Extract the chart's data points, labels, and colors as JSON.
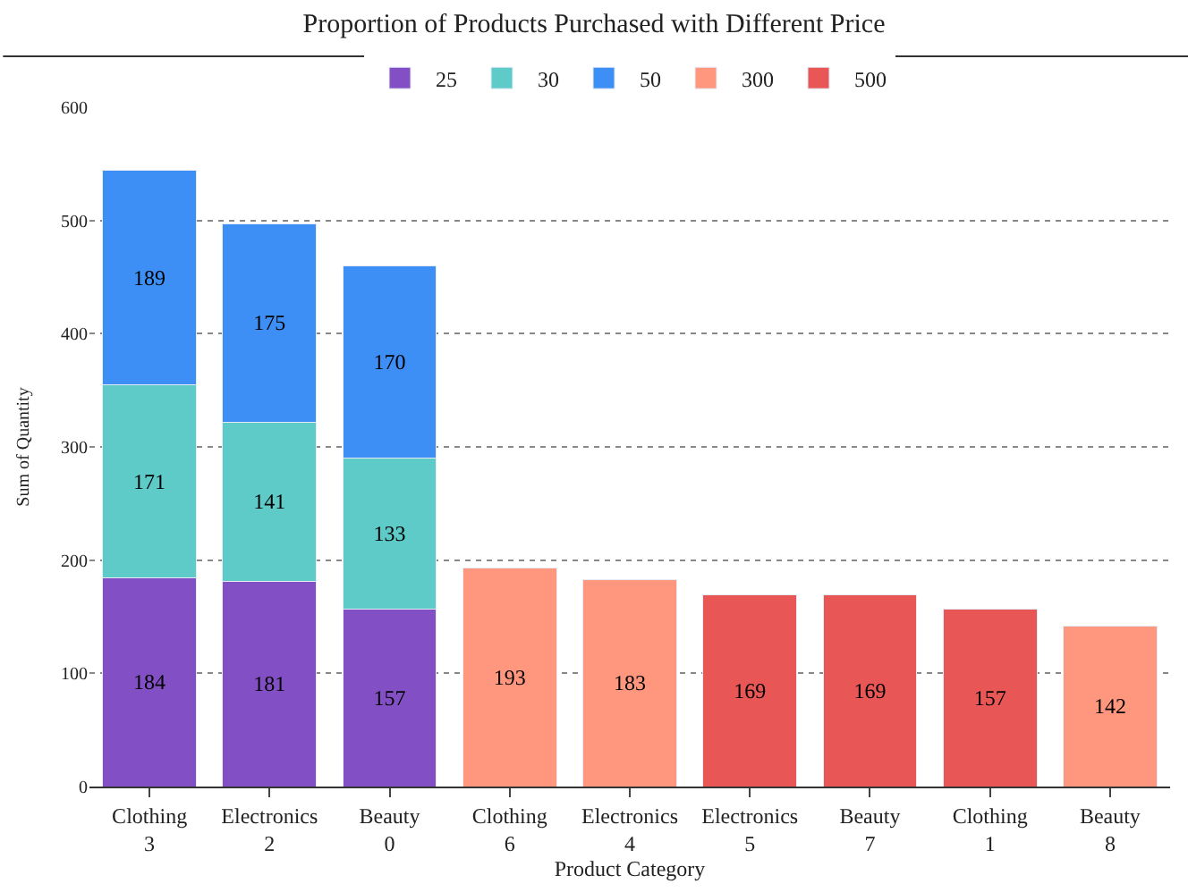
{
  "chart_data": {
    "type": "bar",
    "stacked": true,
    "title": "Proportion of Products Purchased with Different Price",
    "xlabel": "Product Category",
    "ylabel": "Sum of Quantity",
    "categories": [
      "Clothing\n3",
      "Electronics\n2",
      "Beauty\n0",
      "Clothing\n6",
      "Electronics\n4",
      "Electronics\n5",
      "Beauty\n7",
      "Clothing\n1",
      "Beauty\n8"
    ],
    "series": [
      {
        "name": "25",
        "color": "#8250c4",
        "values": [
          184,
          181,
          157,
          null,
          null,
          null,
          null,
          null,
          null
        ]
      },
      {
        "name": "30",
        "color": "#5ecbc8",
        "values": [
          171,
          141,
          133,
          null,
          null,
          null,
          null,
          null,
          null
        ]
      },
      {
        "name": "50",
        "color": "#3d8ff5",
        "values": [
          189,
          175,
          170,
          null,
          null,
          null,
          null,
          null,
          null
        ]
      },
      {
        "name": "300",
        "color": "#ff977e",
        "values": [
          null,
          null,
          null,
          193,
          183,
          null,
          null,
          null,
          142
        ]
      },
      {
        "name": "500",
        "color": "#e85656",
        "values": [
          null,
          null,
          null,
          null,
          null,
          169,
          169,
          157,
          null
        ]
      }
    ],
    "ylim": [
      0,
      600
    ],
    "yticks": [
      0,
      100,
      200,
      300,
      400,
      500,
      600
    ],
    "grid": "y",
    "legend": "top",
    "data_labels": true
  }
}
